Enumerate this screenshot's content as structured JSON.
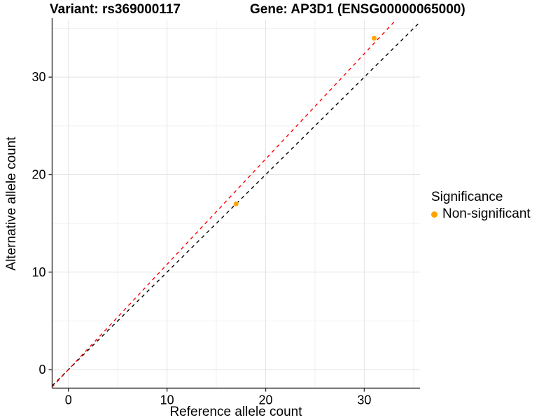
{
  "chart_data": {
    "type": "scatter",
    "title_left": "Variant: rs369000117",
    "title_right": "Gene: AP3D1 (ENSG00000065000)",
    "xlabel": "Reference allele count",
    "ylabel": "Alternative allele count",
    "xlim": [
      -1.65,
      35.65
    ],
    "ylim": [
      -1.9,
      35.9
    ],
    "x_major_ticks": [
      0,
      10,
      20,
      30
    ],
    "y_major_ticks": [
      0,
      10,
      20,
      30
    ],
    "x_minor_ticks": [
      5,
      15,
      25,
      35
    ],
    "y_minor_ticks": [
      5,
      15,
      25,
      35
    ],
    "grid": "major+minor",
    "series": [
      {
        "name": "Non-significant",
        "color": "#FFA500",
        "points": [
          {
            "x": 17,
            "y": 17
          },
          {
            "x": 31,
            "y": 34
          }
        ]
      }
    ],
    "reference_lines": [
      {
        "name": "identity-line",
        "slope": 1.0,
        "intercept": 0,
        "color": "#000000",
        "style": "dashed"
      },
      {
        "name": "expected-ratio-line",
        "slope": 1.08,
        "intercept": 0,
        "color": "#FF0000",
        "style": "dashed"
      }
    ],
    "legend": {
      "title": "Significance",
      "position": "right",
      "entries": [
        {
          "label": "Non-significant",
          "color": "#FFA500"
        }
      ]
    }
  },
  "colors": {
    "background": "#FFFFFF",
    "grid_major": "#E3E3E3",
    "grid_minor": "#F1F1F1",
    "axis_line": "#333333",
    "tick_mark": "#333333",
    "text": "#000000"
  }
}
